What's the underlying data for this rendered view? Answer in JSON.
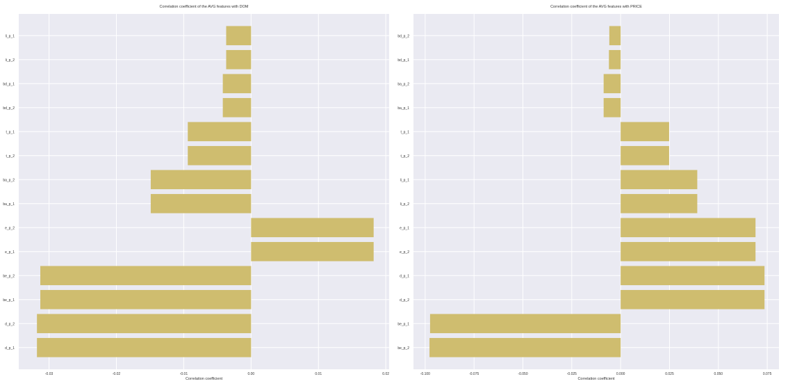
{
  "style": {
    "bar_color": "#cfbd6f",
    "panel_bg": "#eaeaf2",
    "grid_color": "#ffffff"
  },
  "chart_data": [
    {
      "type": "bar",
      "orientation": "horizontal",
      "title": "Correlation coefficient of the AVG features with DOM",
      "xlabel": "Correlation coefficient",
      "ylabel": "",
      "xlim": [
        -0.0345,
        0.0205
      ],
      "xticks": [
        -0.03,
        -0.02,
        -0.01,
        0.0,
        0.01,
        0.02
      ],
      "xtick_labels": [
        "-0.03",
        "-0.02",
        "-0.01",
        "0.00",
        "0.01",
        "0.02"
      ],
      "grid": true,
      "categories": [
        "li_p_1",
        "li_p_2",
        "bd_p_1",
        "bd_p_2",
        "t_p_1",
        "t_p_2",
        "ba_p_2",
        "ba_p_1",
        "e_p_2",
        "e_p_1",
        "be_p_2",
        "be_p_1",
        "d_p_2",
        "d_p_1"
      ],
      "values": [
        -0.0037,
        -0.0037,
        -0.0042,
        -0.0042,
        -0.0094,
        -0.0094,
        -0.0149,
        -0.0149,
        0.0182,
        0.0182,
        -0.0313,
        -0.0313,
        -0.0318,
        -0.0318
      ]
    },
    {
      "type": "bar",
      "orientation": "horizontal",
      "title": "Correlation coefficient of the AVG features with PRICE",
      "xlabel": "Correlation coefficient",
      "ylabel": "",
      "xlim": [
        -0.106,
        0.081
      ],
      "xticks": [
        -0.1,
        -0.075,
        -0.05,
        -0.025,
        0.0,
        0.025,
        0.05,
        0.075
      ],
      "xtick_labels": [
        "-0.100",
        "-0.075",
        "-0.050",
        "-0.025",
        "0.000",
        "0.025",
        "0.050",
        "0.075"
      ],
      "grid": true,
      "categories": [
        "bd_p_2",
        "bd_p_1",
        "ba_p_2",
        "ba_p_1",
        "t_p_1",
        "t_p_2",
        "li_p_1",
        "li_p_2",
        "e_p_1",
        "e_p_2",
        "d_p_1",
        "d_p_2",
        "be_p_1",
        "be_p_2"
      ],
      "values": [
        -0.0058,
        -0.006,
        -0.0087,
        -0.0087,
        0.0248,
        0.0248,
        0.0392,
        0.0392,
        0.069,
        0.069,
        0.0736,
        0.0736,
        -0.0975,
        -0.0978
      ]
    }
  ]
}
